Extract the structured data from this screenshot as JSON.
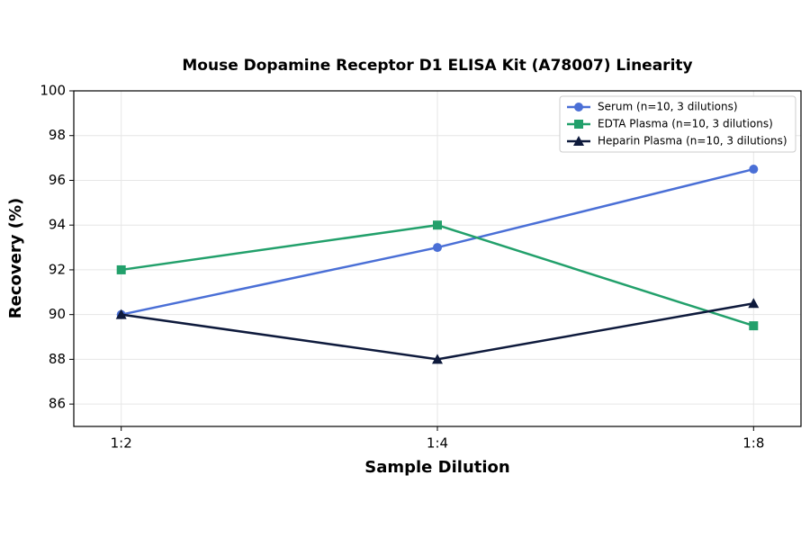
{
  "chart_data": {
    "type": "line",
    "title": "Mouse Dopamine Receptor D1 ELISA Kit (A78007) Linearity",
    "xlabel": "Sample Dilution",
    "ylabel": "Recovery (%)",
    "categories": [
      "1:2",
      "1:4",
      "1:8"
    ],
    "series": [
      {
        "name": "Serum (n=10, 3 dilutions)",
        "color": "#4a6fd6",
        "marker": "circle",
        "values": [
          90,
          93,
          96.5
        ]
      },
      {
        "name": "EDTA Plasma (n=10, 3 dilutions)",
        "color": "#22a06b",
        "marker": "square",
        "values": [
          92,
          94,
          89.5
        ]
      },
      {
        "name": "Heparin Plasma (n=10, 3 dilutions)",
        "color": "#0e1a3c",
        "marker": "triangle",
        "values": [
          90,
          88,
          90.5
        ]
      }
    ],
    "ylim": [
      85,
      100
    ],
    "yticks": [
      86,
      88,
      90,
      92,
      94,
      96,
      98,
      100
    ],
    "grid": true,
    "legend": "upper right"
  }
}
